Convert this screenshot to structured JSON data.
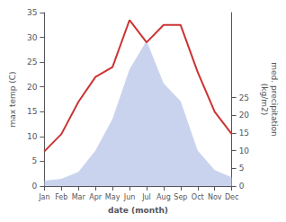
{
  "chart_data": {
    "type": "line",
    "categories": [
      "Jan",
      "Feb",
      "Mar",
      "Apr",
      "May",
      "Jun",
      "Jul",
      "Aug",
      "Sep",
      "Oct",
      "Nov",
      "Dec"
    ],
    "xlabel": "date (month)",
    "ylabel": "max temp (C)",
    "y2label": "med. precipitation\n(kg/m2)",
    "ylim": [
      0,
      35
    ],
    "yticks": [
      0,
      5,
      10,
      15,
      20,
      25,
      30,
      35
    ],
    "y2lim": [
      0,
      49
    ],
    "y2ticks": [
      0,
      5,
      10,
      15,
      20,
      25
    ],
    "grid": false,
    "series": [
      {
        "type": "area",
        "axis": "y2",
        "color": "#b8c4e8",
        "values": [
          1.5,
          2.0,
          4.0,
          10.0,
          19,
          33,
          41,
          29,
          24,
          10,
          4.5,
          2.5
        ]
      },
      {
        "type": "line",
        "color": "#cc3333",
        "values": [
          7,
          10.5,
          17,
          22,
          24,
          33.5,
          29,
          32.5,
          32.5,
          23,
          15,
          10.5
        ]
      }
    ]
  }
}
